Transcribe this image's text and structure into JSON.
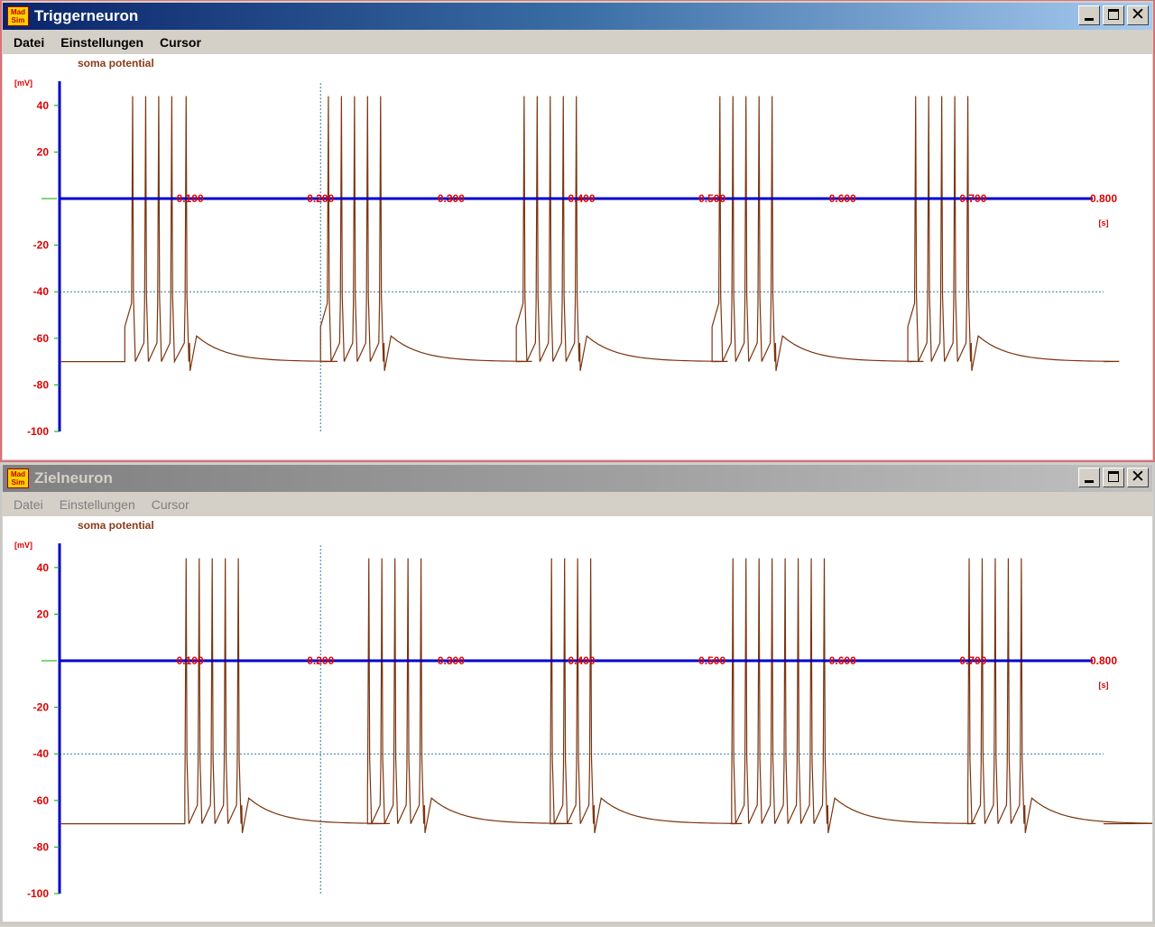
{
  "windows": [
    {
      "title": "Triggerneuron",
      "state": "active",
      "app_icon": {
        "line1": "Mad",
        "line2": "Sim"
      },
      "menu": [
        "Datei",
        "Einstellungen",
        "Cursor"
      ],
      "chart_data": {
        "type": "line",
        "title": "soma potential",
        "ylabel": "[mV]",
        "xlabel": "[s]",
        "ylim": [
          -100,
          50
        ],
        "xlim": [
          0,
          0.8
        ],
        "y_ticks": [
          "40",
          "20",
          "-20",
          "-40",
          "-60",
          "-80",
          "-100"
        ],
        "x_ticks": [
          "0.100",
          "0.200",
          "0.300",
          "0.400",
          "0.500",
          "0.600",
          "0.700",
          "0.800"
        ],
        "cursor_x": 0.2,
        "threshold_y": -40,
        "resting_potential": -70,
        "series": [
          {
            "bursts": [
              {
                "start": 0.05,
                "spikes": [
                  0.056,
                  0.066,
                  0.076,
                  0.086,
                  0.097
                ]
              },
              {
                "start": 0.2,
                "spikes": [
                  0.206,
                  0.216,
                  0.226,
                  0.236,
                  0.246
                ]
              },
              {
                "start": 0.35,
                "spikes": [
                  0.356,
                  0.366,
                  0.376,
                  0.386,
                  0.396
                ]
              },
              {
                "start": 0.5,
                "spikes": [
                  0.506,
                  0.516,
                  0.526,
                  0.536,
                  0.546
                ]
              },
              {
                "start": 0.65,
                "spikes": [
                  0.656,
                  0.666,
                  0.676,
                  0.686,
                  0.696
                ]
              }
            ]
          }
        ]
      }
    },
    {
      "title": "Zielneuron",
      "state": "inactive",
      "app_icon": {
        "line1": "Mad",
        "line2": "Sim"
      },
      "menu": [
        "Datei",
        "Einstellungen",
        "Cursor"
      ],
      "chart_data": {
        "type": "line",
        "title": "soma potential",
        "ylabel": "[mV]",
        "xlabel": "[s]",
        "ylim": [
          -100,
          50
        ],
        "xlim": [
          0,
          0.8
        ],
        "y_ticks": [
          "40",
          "20",
          "-20",
          "-40",
          "-60",
          "-80",
          "-100"
        ],
        "x_ticks": [
          "0.100",
          "0.200",
          "0.300",
          "0.400",
          "0.500",
          "0.600",
          "0.700",
          "0.800"
        ],
        "cursor_x": 0.2,
        "threshold_y": -40,
        "resting_potential": -70,
        "series": [
          {
            "bursts": [
              {
                "start": 0.096,
                "spikes": [
                  0.097,
                  0.107,
                  0.117,
                  0.127,
                  0.137
                ]
              },
              {
                "start": 0.236,
                "spikes": [
                  0.237,
                  0.247,
                  0.257,
                  0.267,
                  0.277
                ]
              },
              {
                "start": 0.376,
                "spikes": [
                  0.377,
                  0.387,
                  0.397,
                  0.407
                ]
              },
              {
                "start": 0.515,
                "spikes": [
                  0.516,
                  0.526,
                  0.536,
                  0.546,
                  0.556,
                  0.566,
                  0.576,
                  0.586
                ]
              },
              {
                "start": 0.696,
                "spikes": [
                  0.697,
                  0.707,
                  0.717,
                  0.727,
                  0.737
                ]
              }
            ]
          }
        ]
      }
    }
  ]
}
